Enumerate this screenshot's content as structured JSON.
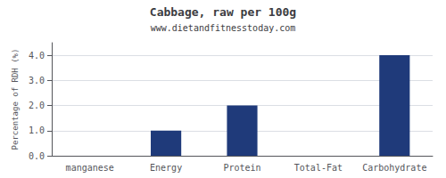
{
  "chart_data": {
    "type": "bar",
    "title": "Cabbage, raw per 100g",
    "subtitle": "www.dietandfitnesstoday.com",
    "categories": [
      "manganese",
      "Energy",
      "Protein",
      "Total-Fat",
      "Carbohydrate"
    ],
    "values": [
      0.0,
      1.0,
      2.0,
      0.0,
      4.0
    ],
    "color": "#1f3a7a",
    "ylabel": "Percentage of RDH (%)",
    "ylim": [
      0,
      4.5
    ],
    "yticks": [
      {
        "value": 0.0,
        "label": "0.0"
      },
      {
        "value": 1.0,
        "label": "1.0"
      },
      {
        "value": 2.0,
        "label": "2.0"
      },
      {
        "value": 3.0,
        "label": "3.0"
      },
      {
        "value": 4.0,
        "label": "4.0"
      }
    ],
    "grid": true
  }
}
